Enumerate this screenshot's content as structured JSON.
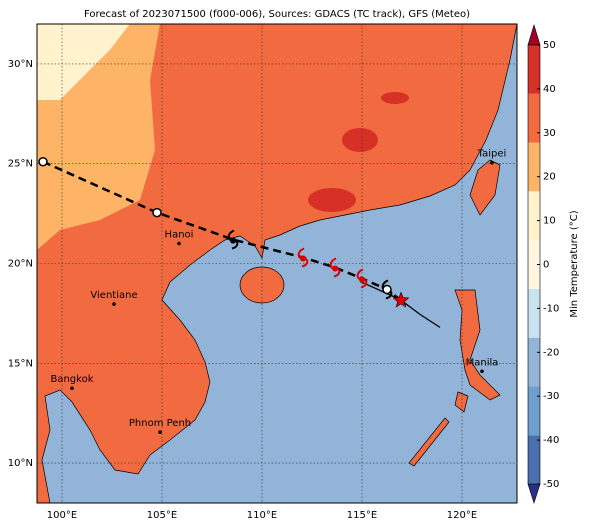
{
  "title": "Forecast of 2023071500 (f000-006), Sources: GDACS (TC track), GFS (Meteo)",
  "map": {
    "lon_range": [
      98.75,
      122.75
    ],
    "lat_range": [
      8,
      32
    ],
    "lon_ticks": [
      {
        "value": 100,
        "label": "100°E"
      },
      {
        "value": 105,
        "label": "105°E"
      },
      {
        "value": 110,
        "label": "110°E"
      },
      {
        "value": 115,
        "label": "115°E"
      },
      {
        "value": 120,
        "label": "120°E"
      }
    ],
    "lat_ticks": [
      {
        "value": 30,
        "label": "30°N"
      },
      {
        "value": 25,
        "label": "25°N"
      },
      {
        "value": 20,
        "label": "20°N"
      },
      {
        "value": 15,
        "label": "15°N"
      },
      {
        "value": 10,
        "label": "10°N"
      }
    ],
    "grid": true,
    "cities": [
      {
        "name": "Hanoi",
        "lon": 105.85,
        "lat": 21.0
      },
      {
        "name": "Vientiane",
        "lon": 102.6,
        "lat": 17.97
      },
      {
        "name": "Bangkok",
        "lon": 100.5,
        "lat": 13.75
      },
      {
        "name": "Phnom Penh",
        "lon": 104.9,
        "lat": 11.55
      },
      {
        "name": "Taipei",
        "lon": 121.5,
        "lat": 25.05
      },
      {
        "name": "Manila",
        "lon": 121.0,
        "lat": 14.6
      }
    ],
    "forecast_track": {
      "lon": [
        99.05,
        104.75,
        108.55,
        112.05,
        113.65,
        115.0,
        116.25,
        116.95
      ],
      "lat": [
        25.1,
        22.55,
        21.2,
        20.3,
        19.8,
        19.25,
        18.7,
        18.15
      ]
    },
    "past_track": {
      "lon": [
        114.9,
        116.9,
        117.9,
        118.9
      ],
      "lat": [
        19.1,
        18.2,
        17.45,
        16.8
      ]
    },
    "symbols": [
      {
        "lon": 99.05,
        "lat": 25.1,
        "marker": "circle",
        "color": "#000000"
      },
      {
        "lon": 104.75,
        "lat": 22.55,
        "marker": "circle",
        "color": "#000000"
      },
      {
        "lon": 108.55,
        "lat": 21.2,
        "marker": "cyclone",
        "color": "#000000"
      },
      {
        "lon": 112.05,
        "lat": 20.3,
        "marker": "cyclone",
        "color": "#e00000"
      },
      {
        "lon": 113.65,
        "lat": 19.8,
        "marker": "cyclone",
        "color": "#e00000"
      },
      {
        "lon": 115.0,
        "lat": 19.25,
        "marker": "cyclone",
        "color": "#e00000"
      },
      {
        "lon": 116.25,
        "lat": 18.7,
        "marker": "cyclone",
        "color": "#000000"
      },
      {
        "lon": 116.25,
        "lat": 18.7,
        "marker": "circle",
        "color": "#000000"
      },
      {
        "lon": 116.95,
        "lat": 18.15,
        "marker": "star",
        "color": "#e00000"
      }
    ]
  },
  "colorbar": {
    "label": "Min Temperature (°C)",
    "lim": [
      -50,
      50
    ],
    "ticks": [
      50,
      40,
      30,
      20,
      10,
      0,
      -10,
      -20,
      -30,
      -40,
      -50
    ],
    "colors": [
      "#2c2f8a",
      "#4a6fae",
      "#6f9fcc",
      "#92b4d8",
      "#c9e2ef",
      "#fdf7e1",
      "#fff2cc",
      "#fdb466",
      "#f26a3f",
      "#d63027",
      "#a50026"
    ]
  }
}
